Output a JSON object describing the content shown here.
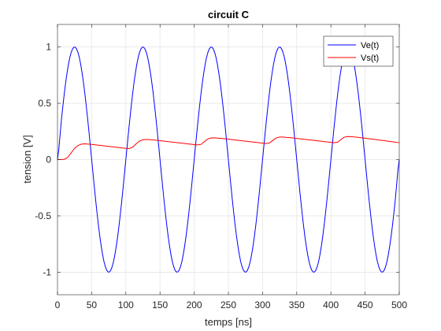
{
  "chart_data": {
    "type": "line",
    "title": "circuit C",
    "xlabel": "temps [ns]",
    "ylabel": "tension [V]",
    "xlim": [
      0,
      500
    ],
    "ylim": [
      -1.2,
      1.2
    ],
    "xticks": [
      0,
      50,
      100,
      150,
      200,
      250,
      300,
      350,
      400,
      450,
      500
    ],
    "yticks": [
      -1,
      -0.5,
      0,
      0.5,
      1
    ],
    "xtick_labels": [
      "0",
      "50",
      "100",
      "150",
      "200",
      "250",
      "300",
      "350",
      "400",
      "450",
      "500"
    ],
    "ytick_labels": [
      "-1",
      "-0.5",
      "0",
      "0.5",
      "1"
    ],
    "grid": true,
    "legend_position": "top-right",
    "series": [
      {
        "name": "Ve(t)",
        "color": "#0000ff",
        "x": [
          0,
          6.25,
          12.5,
          18.75,
          25,
          31.25,
          37.5,
          43.75,
          50,
          56.25,
          62.5,
          68.75,
          75,
          81.25,
          87.5,
          93.75,
          100,
          106.25,
          112.5,
          118.75,
          125,
          131.25,
          137.5,
          143.75,
          150,
          156.25,
          162.5,
          168.75,
          175,
          181.25,
          187.5,
          193.75,
          200,
          206.25,
          212.5,
          218.75,
          225,
          231.25,
          237.5,
          243.75,
          250,
          256.25,
          262.5,
          268.75,
          275,
          281.25,
          287.5,
          293.75,
          300,
          306.25,
          312.5,
          318.75,
          325,
          331.25,
          337.5,
          343.75,
          350,
          356.25,
          362.5,
          368.75,
          375,
          381.25,
          387.5,
          393.75,
          400,
          406.25,
          412.5,
          418.75,
          425,
          431.25,
          437.5,
          443.75,
          450,
          456.25,
          462.5,
          468.75,
          475,
          481.25,
          487.5,
          493.75,
          500
        ],
        "y": [
          0,
          0.383,
          0.707,
          0.924,
          1,
          0.924,
          0.707,
          0.383,
          0,
          -0.383,
          -0.707,
          -0.924,
          -1,
          -0.924,
          -0.707,
          -0.383,
          0,
          0.383,
          0.707,
          0.924,
          1,
          0.924,
          0.707,
          0.383,
          0,
          -0.383,
          -0.707,
          -0.924,
          -1,
          -0.924,
          -0.707,
          -0.383,
          0,
          0.383,
          0.707,
          0.924,
          1,
          0.924,
          0.707,
          0.383,
          0,
          -0.383,
          -0.707,
          -0.924,
          -1,
          -0.924,
          -0.707,
          -0.383,
          0,
          0.383,
          0.707,
          0.924,
          1,
          0.924,
          0.707,
          0.383,
          0,
          -0.383,
          -0.707,
          -0.924,
          -1,
          -0.924,
          -0.707,
          -0.383,
          0,
          0.383,
          0.707,
          0.924,
          1,
          0.924,
          0.707,
          0.383,
          0,
          -0.383,
          -0.707,
          -0.924,
          -1,
          -0.924,
          -0.707,
          -0.383,
          0
        ]
      },
      {
        "name": "Vs(t)",
        "color": "#ff0000",
        "x": [
          0,
          5,
          10,
          15,
          20,
          25,
          30,
          35,
          40,
          50,
          60,
          70,
          80,
          90,
          100,
          105,
          110,
          115,
          120,
          125,
          130,
          135,
          140,
          150,
          160,
          170,
          180,
          190,
          200,
          205,
          210,
          215,
          220,
          225,
          230,
          235,
          240,
          250,
          260,
          270,
          280,
          290,
          300,
          305,
          310,
          315,
          320,
          325,
          330,
          335,
          340,
          350,
          360,
          370,
          380,
          390,
          400,
          405,
          410,
          415,
          420,
          425,
          430,
          435,
          440,
          450,
          460,
          470,
          480,
          490,
          500
        ],
        "y": [
          0,
          0,
          0.002,
          0.02,
          0.06,
          0.1,
          0.125,
          0.137,
          0.14,
          0.135,
          0.128,
          0.121,
          0.114,
          0.107,
          0.1,
          0.098,
          0.11,
          0.14,
          0.165,
          0.176,
          0.179,
          0.177,
          0.175,
          0.168,
          0.161,
          0.154,
          0.147,
          0.14,
          0.133,
          0.13,
          0.135,
          0.16,
          0.183,
          0.192,
          0.193,
          0.19,
          0.188,
          0.181,
          0.174,
          0.167,
          0.16,
          0.153,
          0.146,
          0.143,
          0.147,
          0.17,
          0.193,
          0.2,
          0.2,
          0.197,
          0.195,
          0.188,
          0.181,
          0.174,
          0.167,
          0.16,
          0.153,
          0.15,
          0.155,
          0.18,
          0.2,
          0.205,
          0.204,
          0.2,
          0.198,
          0.19,
          0.182,
          0.174,
          0.166,
          0.158,
          0.15
        ]
      }
    ]
  }
}
